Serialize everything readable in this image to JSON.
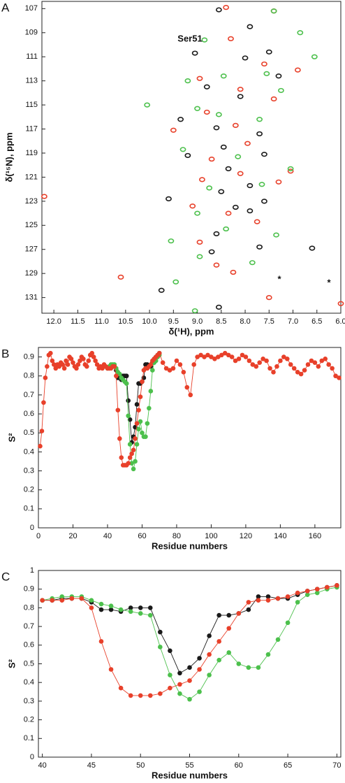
{
  "chart_data": [
    {
      "type": "scatter",
      "panel_label": "A",
      "x_label": "δ(¹H), ppm",
      "y_label": "δ(¹⁵N), ppm",
      "annotations": [
        "Ser51",
        "*",
        "*"
      ],
      "xlim": [
        12.25,
        6.0
      ],
      "ylim": [
        132.3,
        106.4
      ],
      "xticks": [
        {
          "value": 12,
          "label": "12.0"
        },
        11.5,
        {
          "value": 11,
          "label": "11.0"
        },
        10.5,
        {
          "value": 10,
          "label": "10.0"
        },
        9.5,
        {
          "value": 9,
          "label": "9.0"
        },
        8.5,
        {
          "value": 8,
          "label": "8.0"
        },
        7.5,
        {
          "value": 7,
          "label": "7.0"
        },
        6.5,
        {
          "value": 6,
          "label": "6.0"
        }
      ],
      "yticks": [
        107,
        109,
        111,
        113,
        115,
        117,
        119,
        121,
        123,
        125,
        127,
        129,
        131
      ],
      "series": [
        {
          "color": "#1a1a1a",
          "x": [
            8.55,
            7.9,
            7.5,
            9.05,
            8.0,
            8.8,
            7.3,
            8.1,
            9.35,
            8.6,
            7.7,
            8.45,
            7.6,
            9.2,
            8.35,
            7.9,
            8.5,
            9.6,
            8.2,
            7.6,
            8.6,
            8.7,
            7.7,
            9.75,
            8.55,
            6.6,
            7.9
          ],
          "values": [
            107.1,
            108.5,
            110.6,
            110.7,
            111.1,
            113.5,
            112.6,
            114.3,
            116.2,
            116.9,
            117.4,
            118.5,
            119.1,
            119.2,
            120.3,
            121.7,
            122.2,
            122.8,
            123.5,
            123.0,
            125.7,
            127.2,
            126.8,
            130.4,
            131.8,
            126.9,
            123.8
          ]
        },
        {
          "color": "#e8402a",
          "x": [
            8.4,
            7.4,
            8.3,
            7.6,
            6.9,
            8.95,
            8.1,
            7.4,
            8.8,
            9.5,
            8.2,
            7.95,
            8.7,
            8.1,
            7.3,
            8.9,
            9.1,
            8.35,
            7.75,
            8.95,
            8.6,
            8.25,
            10.6,
            12.2,
            6.0,
            7.5,
            7.05
          ],
          "values": [
            106.9,
            107.2,
            109.5,
            111.6,
            112.1,
            112.8,
            113.7,
            114.5,
            115.6,
            117.1,
            116.7,
            118.2,
            119.5,
            120.7,
            121.4,
            121.2,
            123.4,
            124.0,
            124.7,
            126.4,
            128.3,
            128.9,
            129.3,
            122.6,
            131.5,
            131.0,
            120.5
          ]
        },
        {
          "color": "#4cc04c",
          "x": [
            7.4,
            8.85,
            7.55,
            9.2,
            8.45,
            7.25,
            10.05,
            9.0,
            8.55,
            7.7,
            9.3,
            8.15,
            7.05,
            8.75,
            7.65,
            9.0,
            8.4,
            9.55,
            8.95,
            7.85,
            9.45,
            7.35,
            9.05,
            6.85,
            6.55
          ],
          "values": [
            107.2,
            109.6,
            112.4,
            113.0,
            112.6,
            113.8,
            115.0,
            115.3,
            115.8,
            116.2,
            118.7,
            119.3,
            120.3,
            121.9,
            121.6,
            124.0,
            125.3,
            126.3,
            127.6,
            128.1,
            129.7,
            125.8,
            132.1,
            109.0,
            111.0
          ]
        }
      ]
    },
    {
      "type": "line",
      "panel_label": "B",
      "x_label": "Residue numbers",
      "y_label": "S²",
      "xlim": [
        0,
        175
      ],
      "ylim": [
        0,
        0.95
      ],
      "xticks": [
        0,
        20,
        40,
        60,
        80,
        100,
        120,
        140,
        160
      ],
      "yticks": [
        0,
        0.1,
        0.2,
        0.3,
        0.4,
        0.5,
        0.6,
        0.7,
        0.8,
        0.9
      ],
      "series": [
        {
          "color": "#1a1a1a",
          "x": [
            40,
            41,
            42,
            43,
            44,
            45,
            46,
            47,
            48,
            49,
            50,
            51,
            52,
            53,
            54,
            55,
            56,
            57,
            58,
            59,
            60,
            61,
            62,
            63,
            64,
            65,
            66,
            67,
            68,
            69,
            70
          ],
          "values": [
            0.84,
            0.84,
            0.85,
            0.85,
            0.85,
            0.83,
            0.79,
            0.79,
            0.78,
            0.8,
            0.8,
            0.8,
            0.67,
            0.57,
            0.45,
            0.48,
            0.53,
            0.65,
            0.76,
            0.76,
            0.77,
            0.79,
            0.86,
            0.86,
            0.85,
            0.85,
            0.87,
            0.89,
            0.9,
            0.91,
            0.92
          ]
        },
        {
          "color": "#4cc04c",
          "x": [
            40,
            41,
            42,
            43,
            44,
            45,
            46,
            47,
            48,
            49,
            50,
            51,
            52,
            53,
            54,
            55,
            56,
            57,
            58,
            59,
            60,
            61,
            62,
            63,
            64,
            65,
            66,
            67,
            68,
            69,
            70
          ],
          "values": [
            0.84,
            0.85,
            0.86,
            0.86,
            0.86,
            0.84,
            0.82,
            0.81,
            0.79,
            0.78,
            0.77,
            0.76,
            0.59,
            0.44,
            0.34,
            0.31,
            0.35,
            0.44,
            0.52,
            0.56,
            0.5,
            0.48,
            0.48,
            0.55,
            0.63,
            0.72,
            0.83,
            0.87,
            0.88,
            0.9,
            0.91
          ]
        },
        {
          "color": "#e8402a",
          "x": [
            1,
            2,
            3,
            4,
            5,
            6,
            7,
            8,
            9,
            10,
            11,
            12,
            13,
            14,
            15,
            16,
            17,
            18,
            19,
            20,
            21,
            22,
            23,
            24,
            25,
            26,
            27,
            28,
            29,
            30,
            31,
            32,
            33,
            34,
            35,
            36,
            37,
            38,
            39,
            40,
            41,
            42,
            43,
            44,
            45,
            46,
            47,
            48,
            49,
            50,
            51,
            52,
            53,
            54,
            55,
            56,
            57,
            58,
            59,
            60,
            61,
            62,
            63,
            64,
            65,
            66,
            67,
            68,
            69,
            70,
            72,
            74,
            76,
            78,
            80,
            82,
            84,
            86,
            88,
            90,
            92,
            94,
            96,
            98,
            100,
            102,
            104,
            106,
            108,
            110,
            112,
            114,
            116,
            118,
            120,
            122,
            124,
            126,
            128,
            130,
            132,
            134,
            136,
            138,
            140,
            142,
            144,
            146,
            148,
            150,
            152,
            154,
            156,
            158,
            160,
            162,
            164,
            166,
            168,
            170,
            172,
            174
          ],
          "values": [
            0.43,
            0.51,
            0.66,
            0.79,
            0.85,
            0.91,
            0.92,
            0.88,
            0.86,
            0.84,
            0.86,
            0.85,
            0.87,
            0.86,
            0.84,
            0.88,
            0.86,
            0.9,
            0.89,
            0.87,
            0.85,
            0.84,
            0.86,
            0.88,
            0.9,
            0.89,
            0.86,
            0.85,
            0.88,
            0.91,
            0.92,
            0.9,
            0.88,
            0.86,
            0.84,
            0.85,
            0.84,
            0.86,
            0.85,
            0.84,
            0.84,
            0.84,
            0.85,
            0.85,
            0.8,
            0.62,
            0.47,
            0.37,
            0.33,
            0.33,
            0.33,
            0.34,
            0.37,
            0.39,
            0.41,
            0.47,
            0.55,
            0.62,
            0.69,
            0.77,
            0.83,
            0.84,
            0.84,
            0.85,
            0.86,
            0.88,
            0.89,
            0.9,
            0.91,
            0.92,
            0.87,
            0.84,
            0.83,
            0.84,
            0.88,
            0.86,
            0.82,
            0.74,
            0.7,
            0.86,
            0.9,
            0.91,
            0.9,
            0.91,
            0.9,
            0.89,
            0.9,
            0.91,
            0.92,
            0.91,
            0.9,
            0.88,
            0.89,
            0.91,
            0.9,
            0.88,
            0.86,
            0.85,
            0.87,
            0.89,
            0.88,
            0.84,
            0.82,
            0.85,
            0.88,
            0.9,
            0.89,
            0.86,
            0.84,
            0.82,
            0.81,
            0.83,
            0.86,
            0.88,
            0.87,
            0.85,
            0.88,
            0.89,
            0.86,
            0.84,
            0.8,
            0.79
          ]
        }
      ]
    },
    {
      "type": "line",
      "panel_label": "C",
      "x_label": "Residue numbers",
      "y_label": "S²",
      "xlim": [
        39.6,
        70.4
      ],
      "ylim": [
        0,
        1
      ],
      "xticks": [
        40,
        45,
        50,
        55,
        60,
        65,
        70
      ],
      "yticks": [
        0,
        0.1,
        0.2,
        0.3,
        0.4,
        0.5,
        0.6,
        0.7,
        0.8,
        0.9,
        1
      ],
      "series": [
        {
          "color": "#1a1a1a",
          "x": [
            40,
            41,
            42,
            43,
            44,
            45,
            46,
            47,
            48,
            49,
            50,
            51,
            52,
            53,
            54,
            55,
            56,
            57,
            58,
            59,
            60,
            61,
            62,
            63,
            64,
            65,
            66,
            67,
            68,
            69,
            70
          ],
          "values": [
            0.84,
            0.84,
            0.85,
            0.85,
            0.85,
            0.83,
            0.79,
            0.79,
            0.78,
            0.8,
            0.8,
            0.8,
            0.67,
            0.57,
            0.45,
            0.48,
            0.53,
            0.65,
            0.76,
            0.76,
            0.77,
            0.79,
            0.86,
            0.86,
            0.85,
            0.85,
            0.87,
            0.89,
            0.9,
            0.91,
            0.92
          ]
        },
        {
          "color": "#4cc04c",
          "x": [
            40,
            41,
            42,
            43,
            44,
            45,
            46,
            47,
            48,
            49,
            50,
            51,
            52,
            53,
            54,
            55,
            56,
            57,
            58,
            59,
            60,
            61,
            62,
            63,
            64,
            65,
            66,
            67,
            68,
            69,
            70
          ],
          "values": [
            0.84,
            0.85,
            0.86,
            0.86,
            0.86,
            0.84,
            0.82,
            0.81,
            0.79,
            0.78,
            0.77,
            0.76,
            0.59,
            0.44,
            0.34,
            0.31,
            0.35,
            0.44,
            0.52,
            0.56,
            0.5,
            0.48,
            0.48,
            0.55,
            0.63,
            0.72,
            0.83,
            0.87,
            0.88,
            0.9,
            0.91
          ]
        },
        {
          "color": "#e8402a",
          "x": [
            40,
            41,
            42,
            43,
            44,
            45,
            46,
            47,
            48,
            49,
            50,
            51,
            52,
            53,
            54,
            55,
            56,
            57,
            58,
            59,
            60,
            61,
            62,
            63,
            64,
            65,
            66,
            67,
            68,
            69,
            70
          ],
          "values": [
            0.84,
            0.84,
            0.84,
            0.85,
            0.85,
            0.8,
            0.62,
            0.47,
            0.37,
            0.33,
            0.33,
            0.33,
            0.34,
            0.37,
            0.39,
            0.41,
            0.47,
            0.55,
            0.62,
            0.69,
            0.77,
            0.83,
            0.84,
            0.84,
            0.85,
            0.86,
            0.88,
            0.89,
            0.9,
            0.91,
            0.92
          ]
        }
      ]
    }
  ]
}
